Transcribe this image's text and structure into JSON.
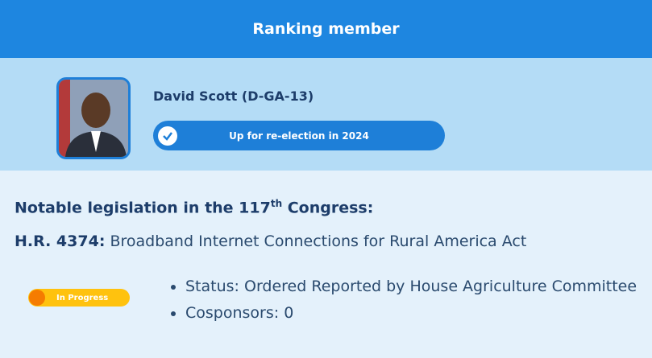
{
  "header": {
    "title": "Ranking member"
  },
  "member": {
    "name": "David Scott (D-GA-13)",
    "badge": "Up for re-election in 2024"
  },
  "legislation": {
    "heading": {
      "before": "Notable legislation in the 117",
      "superscript": "th",
      "after": " Congress:"
    },
    "bill": {
      "number": "H.R. 4374:",
      "title": " Broadband Internet Connections for Rural America Act"
    },
    "status_tag": "In Progress",
    "details": [
      "Status: Ordered Reported by House Agriculture Committee",
      "Cosponsors: 0"
    ]
  }
}
